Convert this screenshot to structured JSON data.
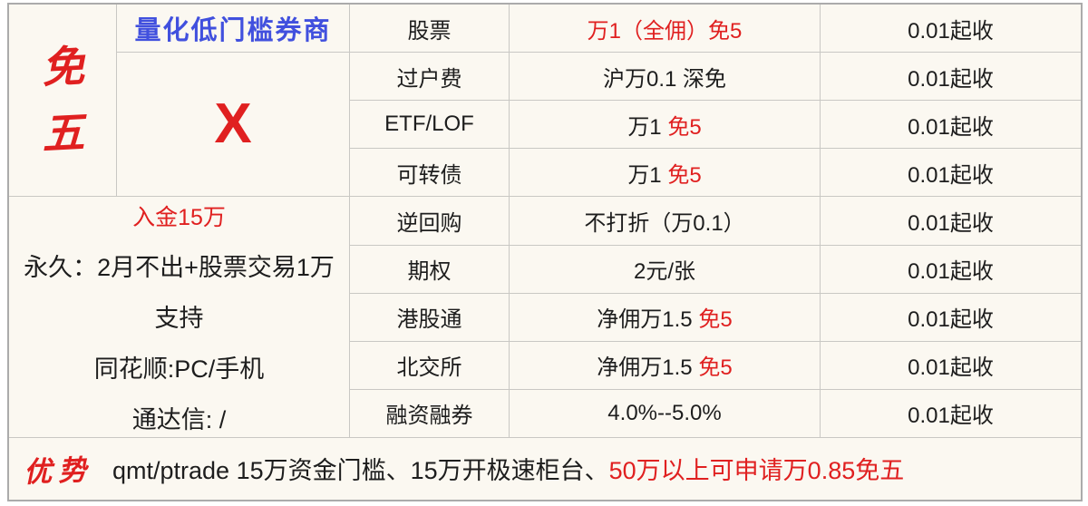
{
  "theme": {
    "background": "#FBF8F1",
    "grid_line": "#c9c8c4",
    "outer_border": "#ababab",
    "accent_blue": "#4150DE",
    "accent_red": "#E02020",
    "text_black": "#1d1d1d"
  },
  "left_panel": {
    "badge_vertical": [
      "免",
      "五"
    ],
    "broker_type": "量化低门槛券商",
    "mark": "X",
    "deposit_note": "入金15万",
    "lines": [
      "永久：2月不出+股票交易1万",
      "支持",
      "同花顺:PC/手机",
      "通达信: /"
    ]
  },
  "fee_table": {
    "rows": [
      {
        "name": "股票",
        "value_plain": "",
        "value_red": "万1（全佣）免5",
        "min": "0.01起收"
      },
      {
        "name": "过户费",
        "value_plain": "沪万0.1 深免",
        "value_red": "",
        "min": "0.01起收"
      },
      {
        "name": "ETF/LOF",
        "value_plain": "万1 ",
        "value_red": "免5",
        "min": "0.01起收"
      },
      {
        "name": "可转债",
        "value_plain": "万1 ",
        "value_red": "免5",
        "min": "0.01起收"
      },
      {
        "name": "逆回购",
        "value_plain": "不打折（万0.1）",
        "value_red": "",
        "min": "0.01起收"
      },
      {
        "name": "期权",
        "value_plain": "2元/张",
        "value_red": "",
        "min": "0.01起收"
      },
      {
        "name": "港股通",
        "value_plain": "净佣万1.5 ",
        "value_red": "免5",
        "min": "0.01起收"
      },
      {
        "name": "北交所",
        "value_plain": "净佣万1.5 ",
        "value_red": "免5",
        "min": "0.01起收"
      },
      {
        "name": "融资融券",
        "value_plain": "4.0%--5.0%",
        "value_red": "",
        "min": "0.01起收"
      }
    ]
  },
  "footer": {
    "label": "优势",
    "text_plain": "qmt/ptrade 15万资金门槛、15万开极速柜台、",
    "text_red": "50万以上可申请万0.85免五"
  }
}
